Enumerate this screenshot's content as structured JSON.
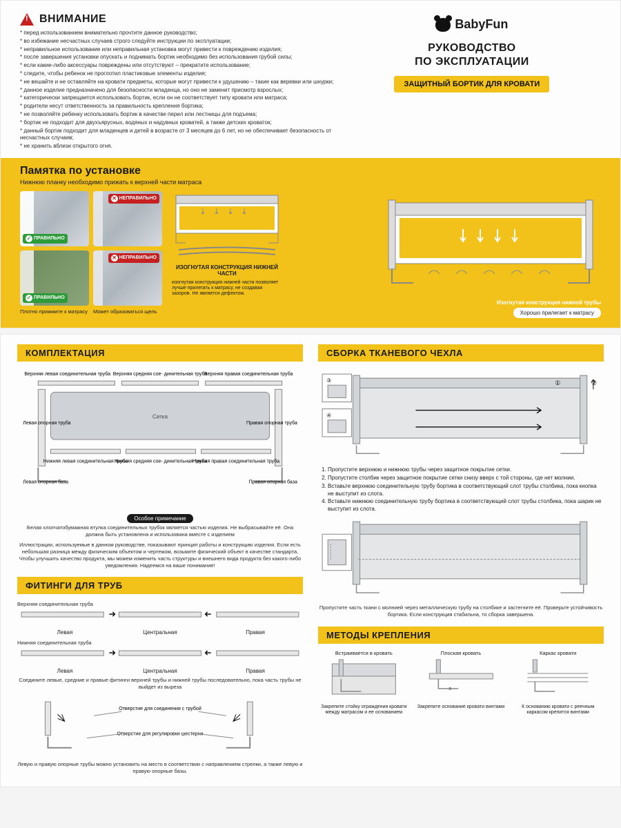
{
  "colors": {
    "accent": "#f2c21a",
    "red": "#c62020",
    "green": "#2e9b3a",
    "text": "#1a1a1a",
    "grey": "#9aa3ab",
    "line": "#777",
    "mesh": "#b9bec3"
  },
  "brand": {
    "name": "BabyFun"
  },
  "manual_title_l1": "РУКОВОДСТВО",
  "manual_title_l2": "ПО ЭКСПЛУАТАЦИИ",
  "product_tag": "ЗАЩИТНЫЙ БОРТИК ДЛЯ КРОВАТИ",
  "warning": {
    "title": "ВНИМАНИЕ",
    "items": [
      "* перед использованием внимательно прочтите данное руководство;",
      "* во избежание несчастных случаев строго следуйте инструкции по эксплуатации;",
      "* неправильное использование или неправильная установка могут привести к повреждению изделия;",
      "* после завершения установки опускать и поднимать бортик необходимо без использования грубой силы;",
      "* если какие-либо аксессуары повреждены или отсутствуют – прекратите использование;",
      "* следите, чтобы ребенок не проглотил пластиковые элементы изделия;",
      "* не вешайте и не оставляйте на кровати предметы, которые могут привести к удушению – такие как веревки или шнурки;",
      "* данное изделие предназначено для безопасности младенца, но оно не заменит присмотр взрослых;",
      "* категорически запрещается использовать бортик, если он не соответствует типу кровати или матраса;",
      "* родители несут ответственность за правильность крепления бортика;",
      "* не позволяйте ребенку использовать бортик в качестве перил или лестницы для подъема;",
      "* бортик не подходит для двухъярусных, водяных и надувных кроватей, а также детских кроваток;",
      "* данный бортик подходит для младенцев и детей в возрасте от 3 месяцев до 6 лет, но не обеспечивает безопасность от несчастных случаев;",
      "* не хранить вблизи открытого огня."
    ]
  },
  "install": {
    "title": "Памятка по установке",
    "subtitle": "Нижнюю планку необходимо прижать к верхней части матраса",
    "ok_label": "ПРАВИЛЬНО",
    "no_label": "НЕПРАВИЛЬНО",
    "cap_ok": "Плотно прижмите к матрасу",
    "cap_no": "Может образоваться щель",
    "curved_title": "ИЗОГНУТАЯ КОНСТРУКЦИЯ НИЖНЕЙ ЧАСТИ",
    "curved_desc": "изогнутая конструкция нижней части позволяет лучше прилегать к матрасу, не создавая зазоров. Не является дефектом.",
    "hero_lab1": "Изогнутая конструкция нижней трубы",
    "hero_lab2": "Хорошо прилегает к матрасу"
  },
  "kit": {
    "title": "КОМПЛЕКТАЦИЯ",
    "labels": {
      "top_left": "Верхняя левая соединительная труба",
      "top_mid": "Верхняя средняя сое- динительная труба",
      "top_right": "Верхняя правая соединительная труба",
      "mesh": "Сетка",
      "side_l": "Левая опорная труба",
      "side_r": "Правая опорная труба",
      "bot_left": "Нижняя левая соединительная труба",
      "bot_mid": "Нижняя средняя сое- динительная труба",
      "bot_right": "Нижняя правая соединительная труба",
      "base_l": "Левая опорная база",
      "base_r": "Правая опорная база"
    },
    "note_pill": "Особое примечание",
    "note": "Белая хлопчатобумажная втулка соединительных трубок является частью изделия. Не выбрасывайте её. Она должна быть установлена и использована вместе с изделием",
    "footer": "Иллюстрации, используемые в данном руководстве, показывают принцип работы и конструкцию изделия. Если есть небольшая разница между физическим объектом и чертежом, возьмите физический объект в качестве стандарта. Чтобы улучшить качество продукта, мы можем изменить часть структуры и внешнего вида продукта без какого-либо уведомления. Надеемся на ваше понимание!"
  },
  "fittings": {
    "title": "ФИТИНГИ ДЛЯ ТРУБ",
    "top_label": "Верхняя соединительная труба",
    "bot_label": "Нижняя соединительная труба",
    "left": "Левая",
    "center": "Центральная",
    "right": "Правая",
    "note1": "Соедините левые, средние и правые фитинги верхней трубы и нижней трубы последовательно, пока часть трубы не выйдет из выреза",
    "hole_tube": "Отверстие для соединения с трубой",
    "hole_gear": "Отверстие для регулировки шестерни",
    "note2": "Левую и правую опорные трубы можно установить на место в соответствии с направлением стрелки, а также левую и правую опорные базы."
  },
  "cover": {
    "title": "СБОРКА ТКАНЕВОГО ЧЕХЛА",
    "steps": [
      "Пропустите верхнюю и нижнюю трубы через защитное покрытие сетки.",
      "Пропустите столбик через защитное покрытие сетки снизу вверх с той стороны, где нет молнии.",
      "Вставьте верхнюю соединительную трубу бортика в соответствующий слот трубы столбика, пока кнопка не выступит из слота.",
      "Вставьте нижнюю соединительную трубу бортика в соответствующий слот трубы столбика, пока шарик не выступит из слота."
    ],
    "note": "Пропустите часть ткани с молнией через металлическую трубу на столбике и застегните её. Проверьте устойчивость бортика. Если конструкция стабильна, то сборка завершена."
  },
  "mount": {
    "title": "МЕТОДЫ КРЕПЛЕНИЯ",
    "items": [
      {
        "label": "Встраивается в кровать",
        "cap": "Закрепите стойку ограждения кровати между матрасом и ее основанием"
      },
      {
        "label": "Плоская кровать",
        "cap": "Закрепите основание кровати винтами"
      },
      {
        "label": "Каркас кровати",
        "cap": "К основанию кровати с реечным каркасом крепится винтами"
      }
    ]
  }
}
